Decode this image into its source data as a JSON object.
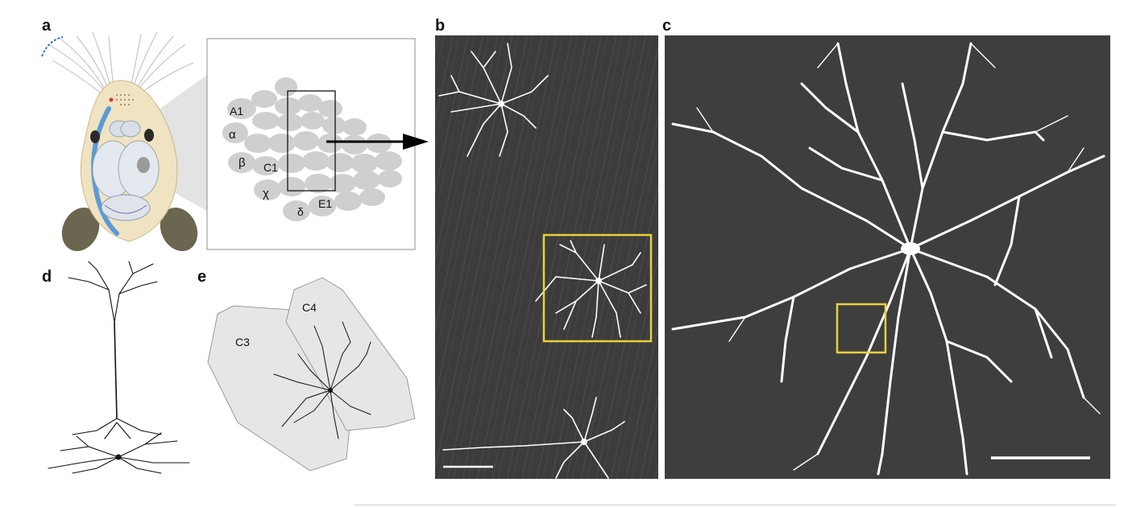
{
  "figure": {
    "panel_letters": {
      "a": "a",
      "b": "b",
      "c": "c",
      "d": "d",
      "e": "e"
    },
    "barrel_labels": {
      "a1": "A1",
      "alpha": "α",
      "beta": "β",
      "c1": "C1",
      "chi": "χ",
      "delta": "δ",
      "e1": "E1"
    },
    "barrel_labels_e": {
      "c3": "C3",
      "c4": "C4"
    }
  },
  "colors": {
    "micrograph_bg": "#3e3e3e",
    "neuron": "#ffffff",
    "highlight_box": "#e6d23c",
    "barrel_fill": "#cfcfcf",
    "barrel_e_fill": "#e6e6e6",
    "blood_vessel": "#5b9bd5"
  }
}
